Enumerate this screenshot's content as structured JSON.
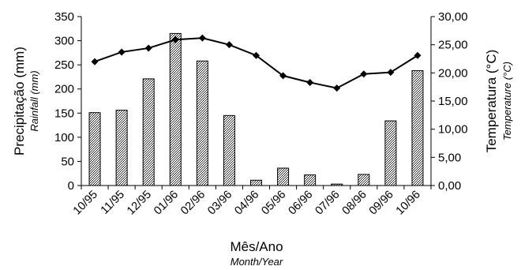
{
  "chart_data": {
    "type": "bar+line",
    "categories": [
      "10/95",
      "11/95",
      "12/95",
      "01/96",
      "02/96",
      "03/96",
      "04/96",
      "05/96",
      "06/96",
      "07/96",
      "08/96",
      "09/96",
      "10/96"
    ],
    "series": [
      {
        "name": "Precipitação (mm)",
        "type": "bar",
        "axis": "left",
        "values": [
          151,
          156,
          221,
          315,
          258,
          145,
          11,
          36,
          22,
          3,
          23,
          134,
          238
        ]
      },
      {
        "name": "Temperatura (°C)",
        "type": "line",
        "axis": "right",
        "values": [
          22.0,
          23.7,
          24.4,
          25.9,
          26.2,
          25.0,
          23.1,
          19.5,
          18.3,
          17.3,
          19.8,
          20.1,
          23.1
        ]
      }
    ],
    "y_left": {
      "label": "Precipitação (mm)",
      "sublabel": "Rainfall (mm)",
      "lim": [
        0,
        350
      ],
      "ticks": [
        "0",
        "50",
        "100",
        "150",
        "200",
        "250",
        "300",
        "350"
      ]
    },
    "y_right": {
      "label": "Temperatura (°C)",
      "sublabel": "Temperature (°C)",
      "lim": [
        0,
        30
      ],
      "ticks": [
        "0,00",
        "5,00",
        "10,00",
        "15,00",
        "20,00",
        "25,00",
        "30,00"
      ]
    },
    "x_axis": {
      "label": "Mês/Ano",
      "sublabel": "Month/Year"
    },
    "grid": false,
    "legend": "none"
  }
}
